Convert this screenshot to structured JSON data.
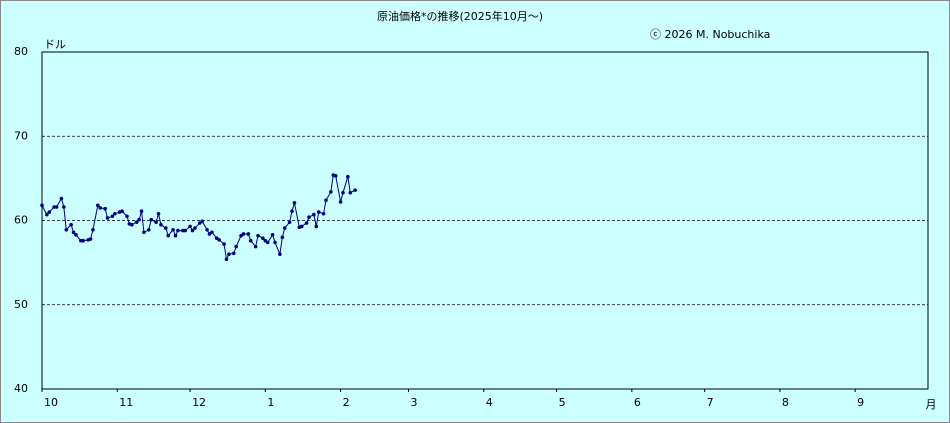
{
  "chart_data": {
    "type": "line",
    "title": "原油価格*の推移(2025年10月～)",
    "subtitle": "ⓒ 2026  M. Nobuchika",
    "y_label": "ドル",
    "x_label": "月",
    "color": "#000080",
    "background": "#ccffff",
    "grid": true,
    "xlim": [
      0,
      365
    ],
    "xticks": [
      {
        "value": 0,
        "label": "10"
      },
      {
        "value": 31,
        "label": "11"
      },
      {
        "value": 61,
        "label": "12"
      },
      {
        "value": 92,
        "label": "1"
      },
      {
        "value": 123,
        "label": "2"
      },
      {
        "value": 151,
        "label": "3"
      },
      {
        "value": 182,
        "label": "4"
      },
      {
        "value": 212,
        "label": "5"
      },
      {
        "value": 243,
        "label": "6"
      },
      {
        "value": 273,
        "label": "7"
      },
      {
        "value": 304,
        "label": "8"
      },
      {
        "value": 335,
        "label": "9"
      }
    ],
    "ylim": [
      40,
      80
    ],
    "yticks": [
      40,
      50,
      60,
      70,
      80
    ],
    "x": [
      0,
      2,
      3,
      5,
      6,
      8,
      9,
      10,
      12,
      13,
      14,
      16,
      17,
      19,
      20,
      21,
      23,
      24,
      26,
      27,
      29,
      30,
      32,
      33,
      35,
      36,
      37,
      39,
      40,
      41,
      42,
      44,
      45,
      47,
      48,
      49,
      51,
      52,
      54,
      55,
      56,
      58,
      59,
      61,
      62,
      63,
      65,
      66,
      68,
      69,
      70,
      72,
      73,
      75,
      76,
      77,
      79,
      80,
      82,
      83,
      85,
      86,
      88,
      89,
      91,
      92,
      93,
      95,
      96,
      98,
      99,
      100,
      102,
      103,
      104,
      106,
      107,
      109,
      110,
      112,
      113,
      114,
      116,
      117,
      119,
      120,
      121,
      123,
      124,
      126,
      127,
      129
    ],
    "values": [
      61.8,
      60.7,
      61.0,
      61.6,
      61.6,
      62.6,
      61.6,
      58.9,
      59.5,
      58.6,
      58.3,
      57.6,
      57.6,
      57.7,
      57.8,
      58.9,
      61.8,
      61.5,
      61.4,
      60.3,
      60.5,
      60.8,
      61.0,
      61.1,
      60.5,
      59.6,
      59.5,
      59.8,
      60.1,
      61.1,
      58.6,
      58.9,
      60.1,
      59.8,
      60.8,
      59.5,
      59.1,
      58.2,
      58.9,
      58.2,
      58.8,
      58.8,
      58.8,
      59.3,
      58.8,
      59.1,
      59.7,
      59.9,
      58.9,
      58.4,
      58.6,
      57.9,
      57.7,
      57.2,
      55.4,
      56.0,
      56.1,
      56.9,
      58.2,
      58.4,
      58.4,
      57.6,
      56.9,
      58.2,
      57.9,
      57.6,
      57.4,
      58.3,
      57.4,
      56.0,
      58.0,
      59.1,
      59.8,
      61.1,
      62.1,
      59.2,
      59.3,
      59.7,
      60.4,
      60.7,
      59.3,
      61.0,
      60.8,
      62.4,
      63.4,
      65.4,
      65.3,
      62.2,
      63.3,
      65.2,
      63.3,
      63.6
    ]
  }
}
